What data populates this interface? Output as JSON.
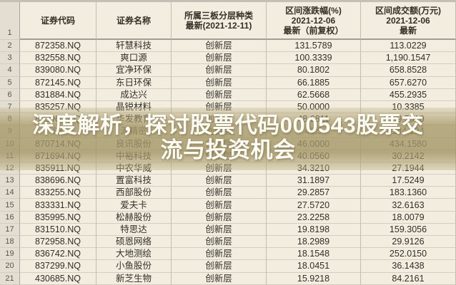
{
  "caption": {
    "line1": "深度解析，探讨股票代码000543股票交",
    "line2": "流与投资机会"
  },
  "header": {
    "corner": "1",
    "columns": [
      "证券代码",
      "证券名称",
      "所属三板分层种类\n最新(2021-12-11)",
      "区间涨跌幅(%)\n2021-12-06\n最新（前复权）",
      "区间成交额(万元)\n2021-12-06\n最新"
    ]
  },
  "rows": [
    {
      "num": "2",
      "code": "872358.NQ",
      "name": "轩慧科技",
      "tier": "创新层",
      "chg": "131.5789",
      "amt": "113.0229"
    },
    {
      "num": "3",
      "code": "832558.NQ",
      "name": "爽口源",
      "tier": "创新层",
      "chg": "100.3339",
      "amt": "1,190.1547"
    },
    {
      "num": "4",
      "code": "839080.NQ",
      "name": "宜净环保",
      "tier": "创新层",
      "chg": "80.1802",
      "amt": "658.8528"
    },
    {
      "num": "5",
      "code": "872145.NQ",
      "name": "东日环保",
      "tier": "创新层",
      "chg": "66.1885",
      "amt": "657.6270"
    },
    {
      "num": "6",
      "code": "831884.NQ",
      "name": "成达兴",
      "tier": "创新层",
      "chg": "62.5668",
      "amt": "455.2935"
    },
    {
      "num": "7",
      "code": "835257.NQ",
      "name": "晶锐材料",
      "tier": "创新层",
      "chg": "50.0000",
      "amt": "10.3385"
    },
    {
      "num": "8",
      "code": "833960.NQ",
      "name": "华发教育",
      "tier": "创新层",
      "chg": "48.6811",
      "amt": "69.5010"
    },
    {
      "num": "9",
      "code": "83",
      "name": "源精密",
      "tier": "创新层",
      "chg": "46.5",
      "amt": "144.194"
    },
    {
      "num": "10",
      "code": "870714.NQ",
      "name": "良讯股份",
      "tier": "创新层",
      "chg": "46.0000",
      "amt": "434.1580"
    },
    {
      "num": "11",
      "code": "871694.NQ",
      "name": "中裕科技",
      "tier": "创新层",
      "chg": "40.0560",
      "amt": "30.2142"
    },
    {
      "num": "12",
      "code": "835911.NQ",
      "name": "中农华威",
      "tier": "创新层",
      "chg": "34.3210",
      "amt": "27.1944"
    },
    {
      "num": "13",
      "code": "838696.NQ",
      "name": "置富科技",
      "tier": "创新层",
      "chg": "31.1897",
      "amt": "17.5249"
    },
    {
      "num": "14",
      "code": "833255.NQ",
      "name": "西部股份",
      "tier": "创新层",
      "chg": "29.2857",
      "amt": "183.1360"
    },
    {
      "num": "15",
      "code": "833331.NQ",
      "name": "爱夫卡",
      "tier": "创新层",
      "chg": "27.5720",
      "amt": "32.6163"
    },
    {
      "num": "16",
      "code": "835995.NQ",
      "name": "松赫股份",
      "tier": "创新层",
      "chg": "23.2258",
      "amt": "18.0079"
    },
    {
      "num": "17",
      "code": "831510.NQ",
      "name": "特思达",
      "tier": "创新层",
      "chg": "19.8198",
      "amt": "159.3056"
    },
    {
      "num": "18",
      "code": "872958.NQ",
      "name": "硕恩网络",
      "tier": "创新层",
      "chg": "18.2989",
      "amt": "29.9126"
    },
    {
      "num": "19",
      "code": "836742.NQ",
      "name": "大地测绘",
      "tier": "创新层",
      "chg": "18.1548",
      "amt": "252.0150"
    },
    {
      "num": "20",
      "code": "837299.NQ",
      "name": "小鱼股份",
      "tier": "创新层",
      "chg": "18.0451",
      "amt": "36.1438"
    },
    {
      "num": "21",
      "code": "430685.NQ",
      "name": "新芝生物",
      "tier": "创新层",
      "chg": "15.9218",
      "amt": "84.2161"
    }
  ],
  "colors": {
    "band": "#a79969",
    "caption_text": "#fdfcf6",
    "sheet_bg": "#f6f3eb",
    "rownum_bg": "#e8e5dd"
  }
}
